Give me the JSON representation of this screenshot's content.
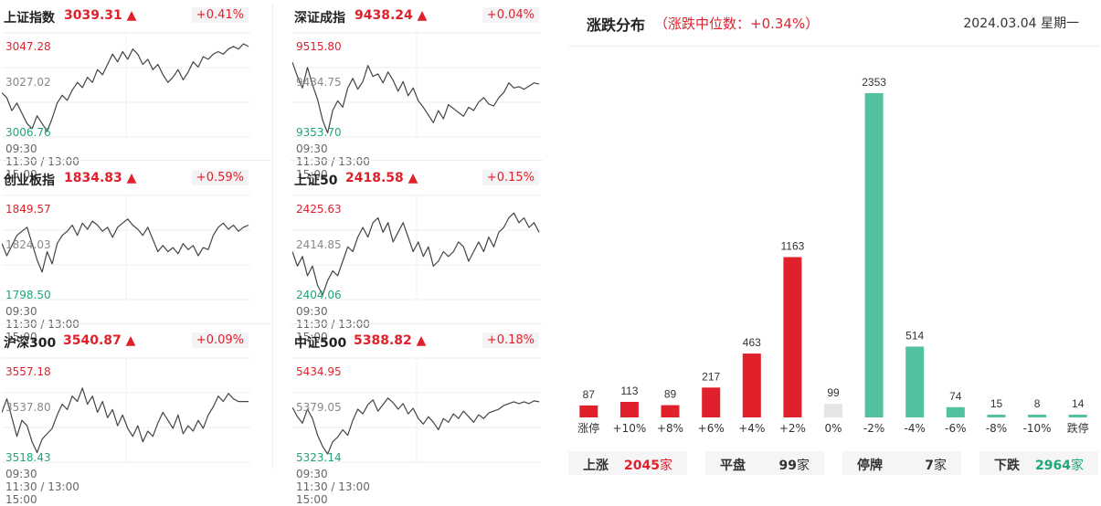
{
  "colors": {
    "up": "#e0212c",
    "down": "#1fa67a",
    "flat": "#888888",
    "teal": "#52c1a0",
    "gray_bar": "#e5e5e5"
  },
  "x_axis": {
    "start": "09:30",
    "mid": "11:30 / 13:00",
    "end": "15:00"
  },
  "indices": [
    {
      "name": "上证指数",
      "value": "3039.31",
      "arrow": "▲",
      "change": "+0.41%",
      "high": "3047.28",
      "mid": "3027.02",
      "low": "3006.76",
      "series": [
        3024,
        3022,
        3017,
        3020,
        3016,
        3012,
        3010,
        3015,
        3012,
        3009,
        3014,
        3020,
        3023,
        3021,
        3025,
        3028,
        3026,
        3030,
        3028,
        3033,
        3031,
        3035,
        3039,
        3036,
        3040,
        3037,
        3041,
        3039,
        3035,
        3037,
        3033,
        3035,
        3031,
        3028,
        3030,
        3033,
        3029,
        3032,
        3036,
        3034,
        3038,
        3037,
        3039,
        3040,
        3039,
        3041,
        3042,
        3041,
        3043,
        3042
      ]
    },
    {
      "name": "深证成指",
      "value": "9438.24",
      "arrow": "▲",
      "change": "+0.04%",
      "high": "9515.80",
      "mid": "9434.75",
      "low": "9353.70",
      "series": [
        9470,
        9448,
        9430,
        9462,
        9435,
        9412,
        9380,
        9360,
        9395,
        9410,
        9400,
        9430,
        9445,
        9428,
        9440,
        9465,
        9448,
        9452,
        9438,
        9455,
        9442,
        9425,
        9440,
        9418,
        9430,
        9410,
        9400,
        9388,
        9376,
        9395,
        9382,
        9404,
        9398,
        9392,
        9386,
        9400,
        9395,
        9408,
        9415,
        9405,
        9402,
        9415,
        9423,
        9438,
        9430,
        9432,
        9428,
        9433,
        9438,
        9436
      ]
    },
    {
      "name": "创业板指",
      "value": "1834.83",
      "arrow": "▲",
      "change": "+0.59%",
      "high": "1849.57",
      "mid": "1824.03",
      "low": "1798.50",
      "series": [
        1826,
        1820,
        1825,
        1830,
        1832,
        1834,
        1826,
        1818,
        1812,
        1822,
        1816,
        1826,
        1830,
        1832,
        1835,
        1830,
        1836,
        1833,
        1837,
        1835,
        1832,
        1834,
        1829,
        1834,
        1836,
        1838,
        1835,
        1833,
        1830,
        1834,
        1828,
        1822,
        1825,
        1822,
        1824,
        1821,
        1826,
        1823,
        1825,
        1820,
        1824,
        1823,
        1830,
        1834,
        1836,
        1833,
        1835,
        1832,
        1834,
        1835
      ]
    },
    {
      "name": "上证50",
      "value": "2418.58",
      "arrow": "▲",
      "change": "+0.15%",
      "high": "2425.63",
      "mid": "2414.85",
      "low": "2404.06",
      "series": [
        2414,
        2411,
        2413,
        2409,
        2411,
        2407,
        2405,
        2408,
        2410,
        2409,
        2412,
        2415,
        2414,
        2417,
        2419,
        2417,
        2420,
        2421,
        2418,
        2420,
        2416,
        2418,
        2420,
        2417,
        2414,
        2416,
        2413,
        2415,
        2411,
        2412,
        2414,
        2413,
        2414,
        2416,
        2415,
        2412,
        2414,
        2416,
        2414,
        2417,
        2415,
        2418,
        2419,
        2421,
        2422,
        2420,
        2421,
        2419,
        2420,
        2418
      ]
    },
    {
      "name": "沪深300",
      "value": "3540.87",
      "arrow": "▲",
      "change": "+0.09%",
      "high": "3557.18",
      "mid": "3537.80",
      "low": "3518.43",
      "series": [
        3537,
        3542,
        3535,
        3528,
        3534,
        3532,
        3526,
        3522,
        3527,
        3529,
        3531,
        3536,
        3540,
        3538,
        3543,
        3541,
        3546,
        3540,
        3543,
        3537,
        3541,
        3535,
        3538,
        3532,
        3536,
        3531,
        3528,
        3532,
        3526,
        3530,
        3528,
        3533,
        3537,
        3534,
        3531,
        3536,
        3529,
        3532,
        3530,
        3534,
        3531,
        3536,
        3539,
        3543,
        3541,
        3544,
        3542,
        3541,
        3541,
        3541
      ]
    },
    {
      "name": "中证500",
      "value": "5388.82",
      "arrow": "▲",
      "change": "+0.18%",
      "high": "5434.95",
      "mid": "5379.05",
      "low": "5323.14",
      "series": [
        5382,
        5372,
        5365,
        5380,
        5370,
        5352,
        5340,
        5332,
        5345,
        5350,
        5358,
        5352,
        5368,
        5380,
        5375,
        5385,
        5390,
        5378,
        5385,
        5392,
        5387,
        5380,
        5386,
        5375,
        5381,
        5370,
        5364,
        5372,
        5366,
        5358,
        5370,
        5366,
        5375,
        5370,
        5378,
        5372,
        5366,
        5374,
        5370,
        5376,
        5378,
        5380,
        5384,
        5386,
        5388,
        5386,
        5388,
        5386,
        5389,
        5388
      ]
    }
  ],
  "distribution": {
    "title": "涨跌分布",
    "subtitle": "（涨跌中位数：+0.34%）",
    "date": "2024.03.04 星期一"
  },
  "chart_data": {
    "type": "bar",
    "categories": [
      "涨停",
      "+10%",
      "+8%",
      "+6%",
      "+4%",
      "+2%",
      "0%",
      "-2%",
      "-4%",
      "-6%",
      "-8%",
      "-10%",
      "跌停"
    ],
    "values": [
      87,
      113,
      89,
      217,
      463,
      1163,
      99,
      2353,
      514,
      74,
      15,
      8,
      14
    ]
  },
  "summary": [
    {
      "label": "上涨",
      "value": "2045",
      "unit": "家",
      "color": "#e0212c"
    },
    {
      "label": "平盘",
      "value": "99",
      "unit": "家",
      "color": "#333333"
    },
    {
      "label": "停牌",
      "value": "7",
      "unit": "家",
      "color": "#333333"
    },
    {
      "label": "下跌",
      "value": "2964",
      "unit": "家",
      "color": "#1fa67a"
    }
  ]
}
